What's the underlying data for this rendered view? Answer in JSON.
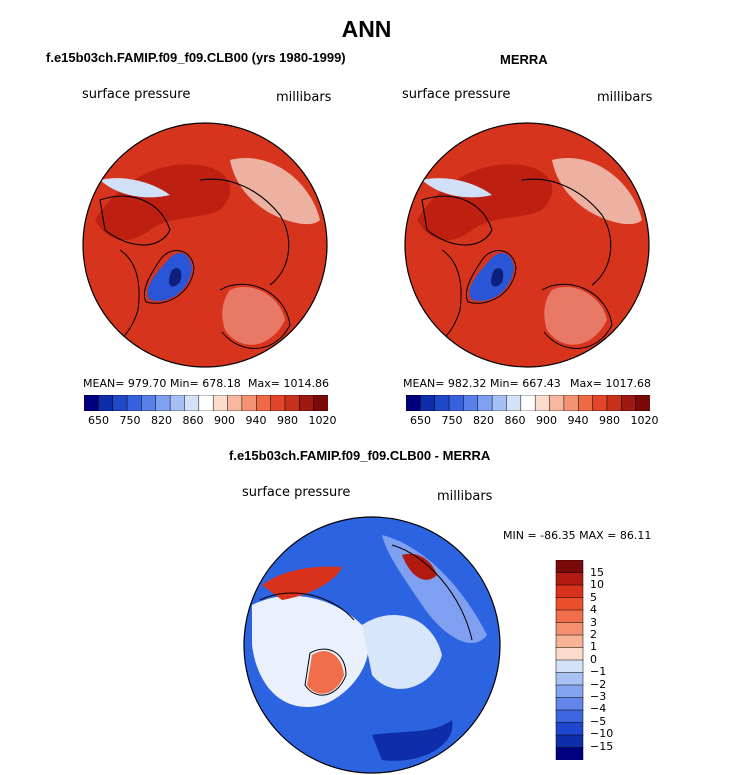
{
  "title": "ANN",
  "colors": {
    "land_high": "#d7341e",
    "land_deep": "#b71b0e",
    "ice_blue": "#2a55d6",
    "diff_zero": "#ffffff",
    "coast": "#000000"
  },
  "panels": [
    {
      "title": "f.e15b03ch.FAMIP.f09_f09.CLB00 (yrs 1980-1999)",
      "variable_label": "surface pressure",
      "units_label": "millibars",
      "stats": {
        "mean": "MEAN= 979.70",
        "min": "Min= 678.18",
        "max": "Max= 1014.86"
      },
      "colorbar_ticks": [
        "650",
        "750",
        "820",
        "860",
        "900",
        "940",
        "980",
        "1020"
      ]
    },
    {
      "title": "MERRA",
      "variable_label": "surface pressure",
      "units_label": "millibars",
      "stats": {
        "mean": "MEAN= 982.32",
        "min": "Min= 667.43",
        "max": "Max= 1017.68"
      },
      "colorbar_ticks": [
        "650",
        "750",
        "820",
        "860",
        "900",
        "940",
        "980",
        "1020"
      ]
    }
  ],
  "diff_panel": {
    "title": "f.e15b03ch.FAMIP.f09_f09.CLB00 - MERRA",
    "variable_label": "surface pressure",
    "units_label": "millibars",
    "minmax": "MIN = -86.35 MAX =  86.11",
    "colorbar_labels": [
      "15",
      "10",
      "5",
      "4",
      "3",
      "2",
      "1",
      "0",
      "−1",
      "−2",
      "−3",
      "−4",
      "−5",
      "−10",
      "−15"
    ]
  },
  "chart_data": [
    {
      "type": "heatmap",
      "projection": "north polar stereographic",
      "title": "f.e15b03ch.FAMIP.f09_f09.CLB00 (yrs 1980-1999)",
      "variable": "surface pressure",
      "units": "millibars",
      "mean": 979.7,
      "min": 678.18,
      "max": 1014.86,
      "levels": [
        650,
        700,
        750,
        800,
        820,
        840,
        860,
        880,
        900,
        920,
        940,
        960,
        980,
        1000,
        1020
      ],
      "palette": [
        "#00007f",
        "#0d2ea8",
        "#1f48c8",
        "#3762df",
        "#5980ea",
        "#7fa0f0",
        "#a6c0f5",
        "#d2e2f7",
        "#ffffff",
        "#fbdccc",
        "#f7b79e",
        "#f39373",
        "#ee6a45",
        "#e2452a",
        "#c8321c",
        "#a01812",
        "#7a0a09"
      ]
    },
    {
      "type": "heatmap",
      "projection": "north polar stereographic",
      "title": "MERRA",
      "variable": "surface pressure",
      "units": "millibars",
      "mean": 982.32,
      "min": 667.43,
      "max": 1017.68,
      "levels": [
        650,
        700,
        750,
        800,
        820,
        840,
        860,
        880,
        900,
        920,
        940,
        960,
        980,
        1000,
        1020
      ],
      "palette": [
        "#00007f",
        "#0d2ea8",
        "#1f48c8",
        "#3762df",
        "#5980ea",
        "#7fa0f0",
        "#a6c0f5",
        "#d2e2f7",
        "#ffffff",
        "#fbdccc",
        "#f7b79e",
        "#f39373",
        "#ee6a45",
        "#e2452a",
        "#c8321c",
        "#a01812",
        "#7a0a09"
      ]
    },
    {
      "type": "heatmap",
      "projection": "north polar stereographic",
      "title": "f.e15b03ch.FAMIP.f09_f09.CLB00 - MERRA",
      "variable": "surface pressure",
      "units": "millibars",
      "min": -86.35,
      "max": 86.11,
      "levels": [
        -15,
        -10,
        -5,
        -4,
        -3,
        -2,
        -1,
        0,
        1,
        2,
        3,
        4,
        5,
        10,
        15
      ],
      "palette": [
        "#7a0a09",
        "#b01a10",
        "#d8321c",
        "#ea4f2c",
        "#f06e4a",
        "#f3906f",
        "#f6b395",
        "#fbdccc",
        "#d4e2f7",
        "#a8c2f4",
        "#84a4ef",
        "#6286ea",
        "#3d66df",
        "#1f46cf",
        "#0d2ea8",
        "#00007f"
      ]
    }
  ]
}
